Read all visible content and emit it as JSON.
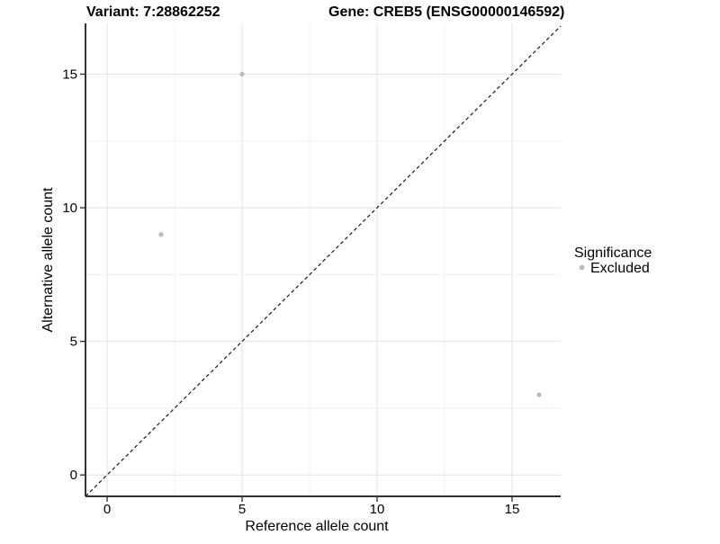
{
  "chart_data": {
    "type": "scatter",
    "titles": {
      "variant": "Variant: 7:28862252",
      "gene": "Gene: CREB5 (ENSG00000146592)"
    },
    "xlabel": "Reference allele count",
    "ylabel": "Alternative allele count",
    "series": [
      {
        "name": "Excluded",
        "color": "#bababa",
        "points": [
          {
            "x": 5,
            "y": 15
          },
          {
            "x": 2,
            "y": 9
          },
          {
            "x": 16,
            "y": 3
          }
        ]
      }
    ],
    "x_ticks": [
      0,
      5,
      10,
      15
    ],
    "y_ticks": [
      0,
      5,
      10,
      15
    ],
    "x_minor_ticks": [
      2.5,
      7.5,
      12.5
    ],
    "y_minor_ticks": [
      2.5,
      7.5,
      12.5
    ],
    "xlim": [
      -0.8,
      16.8
    ],
    "ylim": [
      -0.8,
      16.9
    ],
    "grid": "major+minor",
    "reference_line": {
      "equation": "y = x",
      "style": "dashed",
      "color": "#1a1a1a"
    },
    "legend": {
      "title": "Significance",
      "position": "right",
      "items": [
        {
          "label": "Excluded",
          "marker": "circle",
          "color": "#bababa"
        }
      ]
    }
  }
}
